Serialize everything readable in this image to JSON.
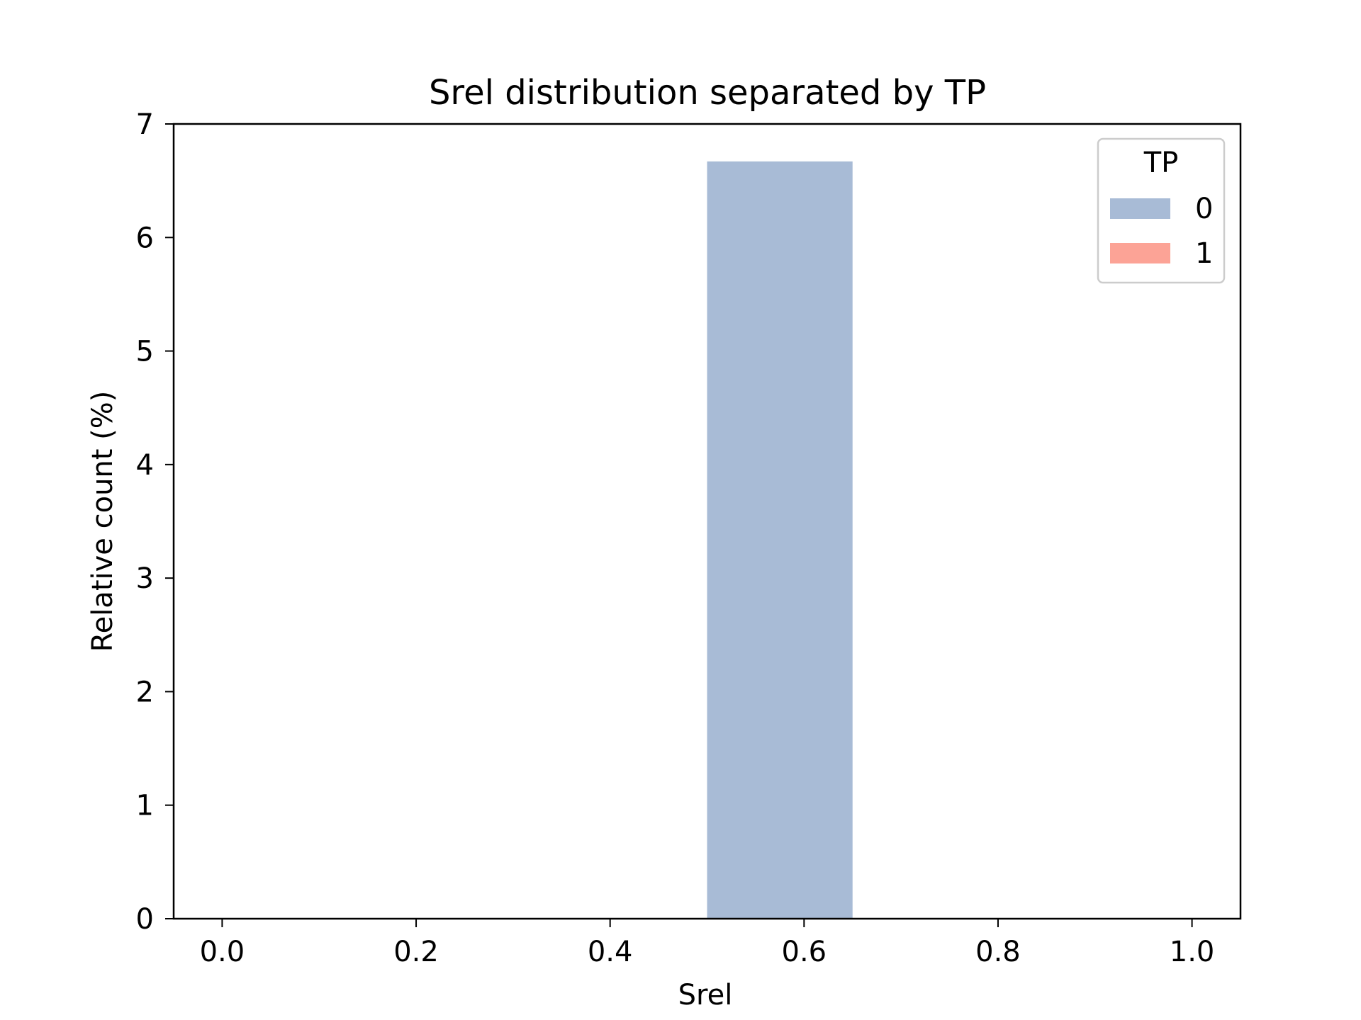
{
  "chart_data": {
    "type": "bar",
    "title": "Srel distribution separated by TP",
    "xlabel": "Srel",
    "ylabel": "Relative count (%)",
    "xlim": [
      -0.05,
      1.05
    ],
    "ylim": [
      0,
      7
    ],
    "xticks": [
      "0.0",
      "0.2",
      "0.4",
      "0.6",
      "0.8",
      "1.0"
    ],
    "yticks": [
      "0",
      "1",
      "2",
      "3",
      "4",
      "5",
      "6",
      "7"
    ],
    "xtick_values": [
      0.0,
      0.2,
      0.4,
      0.6,
      0.8,
      1.0
    ],
    "ytick_values": [
      0,
      1,
      2,
      3,
      4,
      5,
      6,
      7
    ],
    "grid": false,
    "legend": {
      "title": "TP",
      "placement": "top-right"
    },
    "series": [
      {
        "name": "0",
        "color": "#a8bbd6",
        "bins": [
          {
            "x0": 0.5,
            "x1": 0.65,
            "value": 6.67
          }
        ]
      },
      {
        "name": "1",
        "color": "#fca396",
        "bins": []
      }
    ]
  }
}
